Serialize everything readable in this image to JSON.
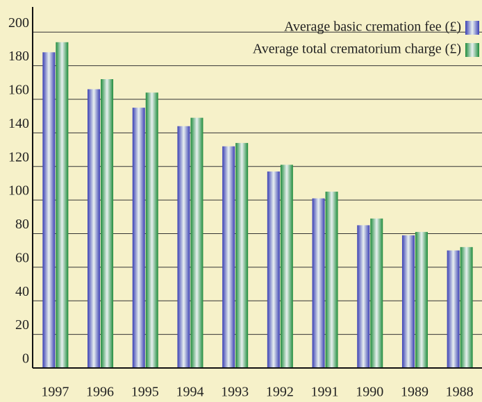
{
  "chart_data": {
    "type": "bar",
    "categories": [
      "1997",
      "1996",
      "1995",
      "1994",
      "1993",
      "1992",
      "1991",
      "1990",
      "1989",
      "1988"
    ],
    "series": [
      {
        "name": "Average basic cremation fee (£)",
        "color": "#3a3fb4",
        "values": [
          188,
          166,
          155,
          144,
          132,
          117,
          101,
          85,
          79,
          70
        ]
      },
      {
        "name": "Average total crematorium charge (£)",
        "color": "#1f8c3c",
        "values": [
          194,
          172,
          164,
          149,
          134,
          121,
          105,
          89,
          81,
          72
        ]
      }
    ],
    "ylim": [
      0,
      215
    ],
    "yticks": [
      0,
      20,
      40,
      60,
      80,
      100,
      120,
      140,
      160,
      180,
      200
    ],
    "grid": true,
    "legend": "top-right"
  }
}
